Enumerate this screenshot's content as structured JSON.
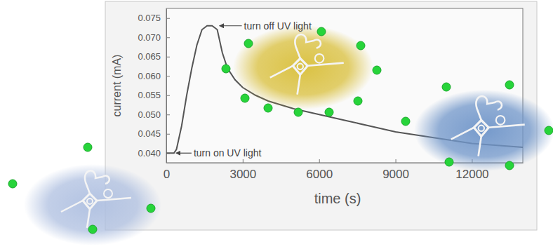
{
  "chart_data": {
    "type": "line",
    "x_label": "time (s)",
    "y_label": "current (mA)",
    "x": [
      0,
      300,
      400,
      600,
      800,
      1000,
      1200,
      1400,
      1600,
      1800,
      2000,
      2200,
      2400,
      2700,
      3000,
      3500,
      4000,
      5000,
      6000,
      7000,
      8000,
      9000,
      10000,
      11000,
      12000,
      13000,
      14000
    ],
    "values": [
      0.04,
      0.04,
      0.041,
      0.047,
      0.055,
      0.062,
      0.068,
      0.072,
      0.073,
      0.073,
      0.072,
      0.066,
      0.062,
      0.059,
      0.057,
      0.055,
      0.0535,
      0.0515,
      0.05,
      0.0485,
      0.047,
      0.0455,
      0.0445,
      0.0435,
      0.0425,
      0.042,
      0.0415
    ],
    "color": "#555555",
    "xlim": [
      0,
      14000
    ],
    "ylim": [
      0.0375,
      0.0775
    ],
    "xticks": [
      0,
      3000,
      6000,
      9000,
      12000
    ],
    "yticks": [
      {
        "value": 0.04,
        "label": "0.040"
      },
      {
        "value": 0.045,
        "label": "0.045"
      },
      {
        "value": 0.05,
        "label": "0.050"
      },
      {
        "value": 0.055,
        "label": "0.055"
      },
      {
        "value": 0.06,
        "label": "0.060"
      },
      {
        "value": 0.065,
        "label": "0.065"
      },
      {
        "value": 0.07,
        "label": "0.070"
      },
      {
        "value": 0.075,
        "label": "0.075"
      }
    ],
    "grid": false,
    "annotations": [
      {
        "text": "turn off UV light",
        "x": 2000,
        "y": 0.073
      },
      {
        "text": "turn on UV light",
        "x": 300,
        "y": 0.04
      }
    ]
  }
}
